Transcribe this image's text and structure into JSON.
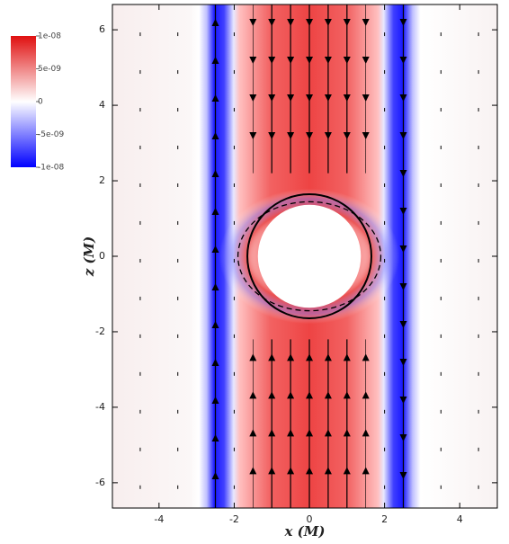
{
  "chart_data": {
    "type": "heatmap",
    "xlabel": "x (M)",
    "ylabel": "z (M)",
    "xlim": [
      -5.24,
      5.0
    ],
    "ylim": [
      -6.67,
      6.67
    ],
    "xticks": [
      -4,
      -2,
      0,
      2,
      4
    ],
    "yticks": [
      -6,
      -4,
      -2,
      0,
      2,
      4,
      6
    ],
    "colorbar": {
      "lim": [
        -1e-08,
        1e-08
      ],
      "colors": [
        "#0000ff",
        "#ffffff",
        "#e01010"
      ],
      "ticks": [
        {
          "value": 1e-08,
          "label": "1e-08"
        },
        {
          "value": 5e-09,
          "label": "5e-09"
        },
        0,
        {
          "value": -5e-09,
          "label": "-5e-09"
        },
        {
          "value": -1e-08,
          "label": "-1e-08"
        }
      ]
    }
  }
}
